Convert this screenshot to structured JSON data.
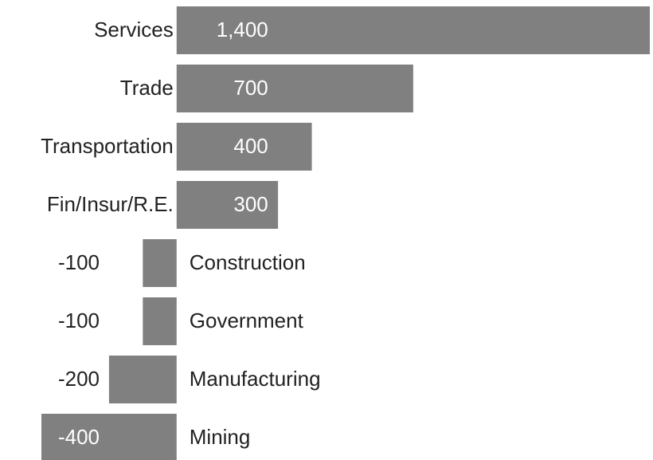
{
  "chart_data": {
    "type": "bar",
    "orientation": "horizontal",
    "color": "#808080",
    "categories": [
      "Services",
      "Trade",
      "Transportation",
      "Fin/Insur/R.E.",
      "Construction",
      "Government",
      "Manufacturing",
      "Mining"
    ],
    "values": [
      1400,
      700,
      400,
      300,
      -100,
      -100,
      -200,
      -400
    ],
    "value_labels": [
      "1,400",
      "700",
      "400",
      "300",
      "-100",
      "-100",
      "-200",
      "-400"
    ]
  }
}
